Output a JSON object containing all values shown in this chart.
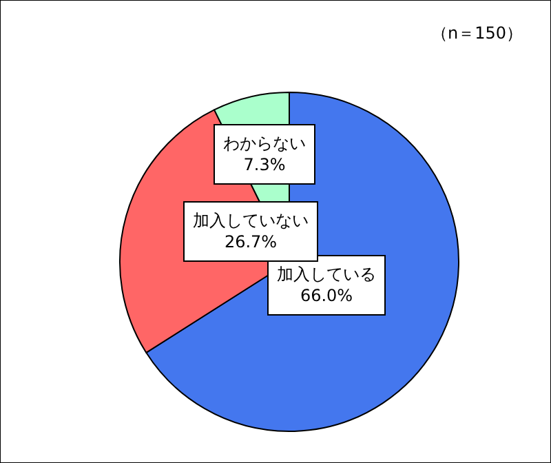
{
  "chart_data": {
    "type": "pie",
    "categories": [
      "加入している",
      "加入していない",
      "わからない"
    ],
    "values": [
      66.0,
      26.7,
      7.3
    ],
    "value_labels": [
      "66.0%",
      "26.7%",
      "7.3%"
    ],
    "colors": [
      "#4477ee",
      "#ff6666",
      "#aaffcc"
    ],
    "annotations": [
      "（n＝150）"
    ],
    "legend": false
  }
}
